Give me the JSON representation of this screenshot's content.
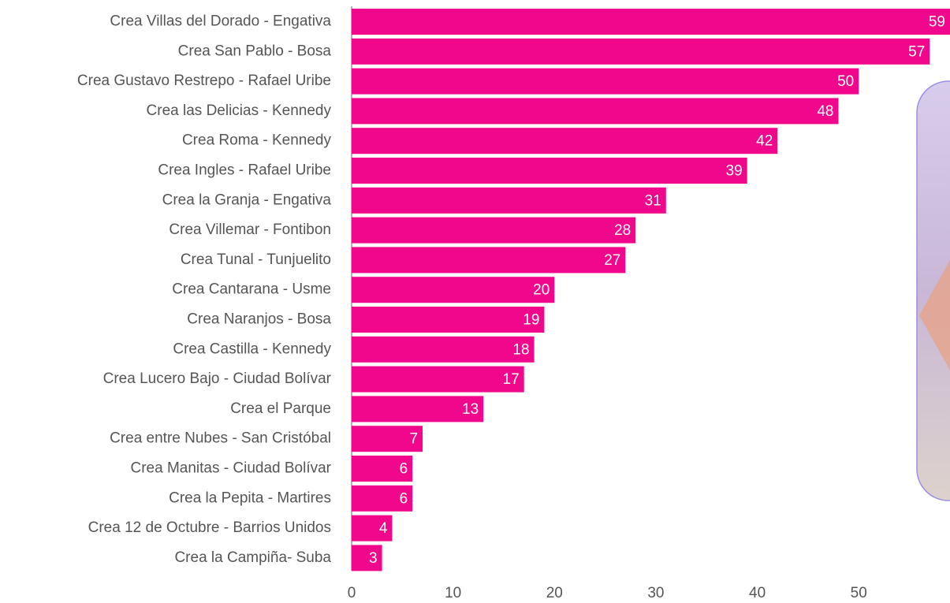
{
  "chart_data": {
    "type": "barh",
    "categories": [
      "Crea Villas del Dorado - Engativa",
      "Crea San Pablo - Bosa",
      "Crea Gustavo Restrepo - Rafael Uribe",
      "Crea las Delicias - Kennedy",
      "Crea Roma - Kennedy",
      "Crea Ingles - Rafael Uribe",
      "Crea la Granja - Engativa",
      "Crea Villemar - Fontibon",
      "Crea Tunal - Tunjuelito",
      "Crea Cantarana - Usme",
      "Crea Naranjos - Bosa",
      "Crea Castilla - Kennedy",
      "Crea Lucero Bajo - Ciudad Bolívar",
      "Crea el Parque",
      "Crea entre Nubes - San Cristóbal",
      "Crea Manitas - Ciudad Bolívar",
      "Crea la Pepita - Martires",
      "Crea 12 de Octubre - Barrios Unidos",
      "Crea la Campiña- Suba"
    ],
    "values": [
      59,
      57,
      50,
      48,
      42,
      39,
      31,
      28,
      27,
      20,
      19,
      18,
      17,
      13,
      7,
      6,
      6,
      4,
      3
    ],
    "color": "#f0078c",
    "xlim": [
      0,
      59
    ],
    "xticks": [
      0,
      10,
      20,
      30,
      40,
      50
    ]
  }
}
